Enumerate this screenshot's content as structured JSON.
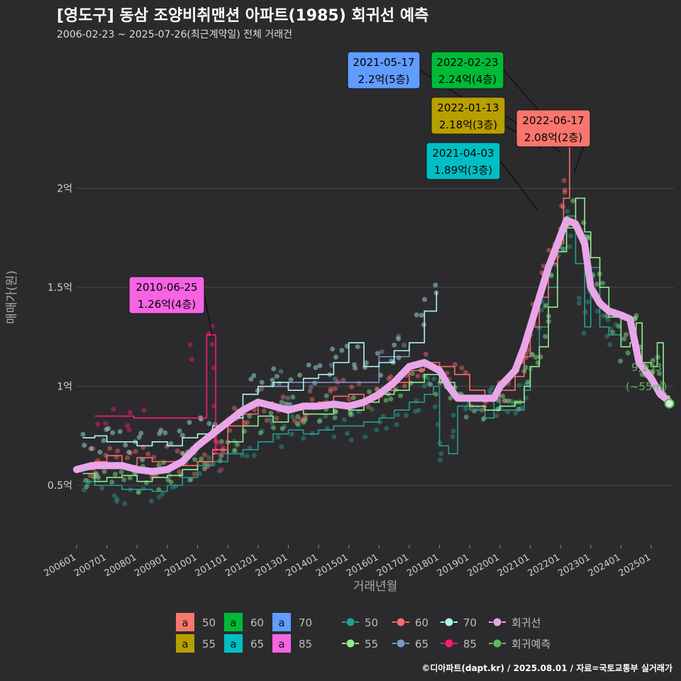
{
  "header": {
    "title": "[영도구] 동삼 조양비취맨션 아파트(1985) 회귀선 예측",
    "subtitle": "2006-02-23 ~ 2025-07-26(최근계약일) 전체 거래건"
  },
  "footer": {
    "credit": "©디아파트(dapt.kr) / 2025.08.01 / 자료=국토교통부 실거래가"
  },
  "colors": {
    "background": "#2b2b2d",
    "grid": "#4a4a4d",
    "area50": "#f8766d",
    "area55": "#b79f00",
    "area60": "#00ba38",
    "area65": "#00bfc4",
    "area70": "#619cff",
    "area85": "#f564e3",
    "line50": "#2a9d8f",
    "line55": "#90ee90",
    "line60": "#ff6b6b",
    "line65": "#7f96c9",
    "line70": "#aef5f0",
    "line85": "#ff1a75",
    "regression": "#e8a6e8",
    "forecast": "#5cb85c"
  },
  "chart_data": {
    "type": "line",
    "title": "[영도구] 동삼 조양비취맨션 아파트(1985) 회귀선 예측",
    "subtitle": "2006-02-23 ~ 2025-07-26(최근계약일) 전체 거래건",
    "xlabel": "거래년월",
    "ylabel": "매매가(원)",
    "ylim": [
      0.2,
      2.7
    ],
    "x_range": [
      "2006-01",
      "2025-09"
    ],
    "grid": true,
    "x_ticks": [
      "200601",
      "200701",
      "200801",
      "200901",
      "201001",
      "201101",
      "201201",
      "201301",
      "201401",
      "201501",
      "201601",
      "201701",
      "201801",
      "201901",
      "202001",
      "202101",
      "202201",
      "202301",
      "202401",
      "202501"
    ],
    "y_ticks": [
      {
        "value": 0.5,
        "label": "0.5억"
      },
      {
        "value": 1.0,
        "label": "1억"
      },
      {
        "value": 1.5,
        "label": "1.5억"
      },
      {
        "value": 2.0,
        "label": "2억"
      }
    ],
    "series": [
      {
        "name": "50",
        "key": "line50",
        "points": [
          [
            2006.2,
            0.52
          ],
          [
            2006.6,
            0.5
          ],
          [
            2007.0,
            0.5
          ],
          [
            2007.5,
            0.48
          ],
          [
            2008.0,
            0.48
          ],
          [
            2008.5,
            0.47
          ],
          [
            2009.0,
            0.5
          ],
          [
            2009.5,
            0.54
          ],
          [
            2010.0,
            0.6
          ],
          [
            2010.5,
            0.62
          ],
          [
            2011.0,
            0.66
          ],
          [
            2011.5,
            0.68
          ],
          [
            2012.0,
            0.72
          ],
          [
            2012.5,
            0.76
          ],
          [
            2013.0,
            0.78
          ],
          [
            2013.5,
            0.76
          ],
          [
            2014.0,
            0.78
          ],
          [
            2014.5,
            0.8
          ],
          [
            2015.0,
            0.8
          ],
          [
            2015.5,
            0.82
          ],
          [
            2016.0,
            0.84
          ],
          [
            2016.5,
            0.88
          ],
          [
            2017.0,
            0.92
          ],
          [
            2017.5,
            0.96
          ],
          [
            2017.8,
            1.0
          ],
          [
            2018.0,
            0.7
          ],
          [
            2018.3,
            0.66
          ],
          [
            2018.6,
            0.9
          ],
          [
            2019.0,
            0.88
          ],
          [
            2019.5,
            0.84
          ],
          [
            2019.8,
            0.95
          ],
          [
            2020.0,
            0.88
          ],
          [
            2020.5,
            0.88
          ],
          [
            2020.8,
            0.98
          ],
          [
            2021.0,
            1.1
          ],
          [
            2021.3,
            1.3
          ],
          [
            2021.6,
            1.5
          ],
          [
            2021.9,
            1.7
          ],
          [
            2022.2,
            1.86
          ],
          [
            2022.5,
            1.62
          ],
          [
            2022.8,
            1.3
          ],
          [
            2023.0,
            1.6
          ],
          [
            2023.3,
            1.3
          ],
          [
            2023.6,
            1.26
          ],
          [
            2024.0,
            1.22
          ]
        ]
      },
      {
        "name": "55",
        "key": "line55",
        "points": [
          [
            2006.2,
            0.56
          ],
          [
            2006.6,
            0.52
          ],
          [
            2007.0,
            0.54
          ],
          [
            2007.5,
            0.55
          ],
          [
            2008.0,
            0.52
          ],
          [
            2008.5,
            0.54
          ],
          [
            2009.0,
            0.55
          ],
          [
            2009.5,
            0.58
          ],
          [
            2010.0,
            0.62
          ],
          [
            2010.5,
            0.66
          ],
          [
            2011.0,
            0.72
          ],
          [
            2011.5,
            0.8
          ],
          [
            2012.0,
            0.85
          ],
          [
            2012.5,
            0.82
          ],
          [
            2013.0,
            0.88
          ],
          [
            2013.5,
            0.86
          ],
          [
            2014.0,
            0.86
          ],
          [
            2014.5,
            0.9
          ],
          [
            2015.0,
            0.88
          ],
          [
            2015.5,
            0.92
          ],
          [
            2016.0,
            0.96
          ],
          [
            2016.5,
            0.98
          ],
          [
            2017.0,
            1.02
          ],
          [
            2017.5,
            1.06
          ],
          [
            2018.0,
            1.02
          ],
          [
            2018.5,
            0.95
          ],
          [
            2019.0,
            0.9
          ],
          [
            2019.5,
            0.88
          ],
          [
            2020.0,
            0.9
          ],
          [
            2020.5,
            0.92
          ],
          [
            2020.8,
            1.0
          ],
          [
            2021.0,
            1.1
          ],
          [
            2021.3,
            1.2
          ],
          [
            2021.6,
            1.4
          ],
          [
            2021.9,
            1.68
          ],
          [
            2022.2,
            1.8
          ],
          [
            2022.5,
            1.95
          ],
          [
            2022.8,
            1.78
          ],
          [
            2023.0,
            1.65
          ],
          [
            2023.3,
            1.5
          ],
          [
            2023.6,
            1.35
          ],
          [
            2024.0,
            1.2
          ],
          [
            2024.3,
            1.22
          ],
          [
            2024.5,
            1.32
          ],
          [
            2024.7,
            1.12
          ],
          [
            2025.0,
            1.1
          ],
          [
            2025.2,
            1.22
          ],
          [
            2025.4,
            0.95
          ],
          [
            2025.6,
            0.9
          ]
        ]
      },
      {
        "name": "60",
        "key": "line60",
        "points": [
          [
            2006.2,
            0.58
          ],
          [
            2006.6,
            0.62
          ],
          [
            2007.0,
            0.65
          ],
          [
            2007.5,
            0.6
          ],
          [
            2008.0,
            0.64
          ],
          [
            2008.5,
            0.62
          ],
          [
            2009.0,
            0.62
          ],
          [
            2009.5,
            0.6
          ],
          [
            2010.0,
            0.62
          ],
          [
            2010.5,
            0.68
          ],
          [
            2011.0,
            0.8
          ],
          [
            2011.5,
            0.86
          ],
          [
            2012.0,
            0.92
          ],
          [
            2012.5,
            0.9
          ],
          [
            2013.0,
            0.88
          ],
          [
            2013.5,
            0.9
          ],
          [
            2014.0,
            0.92
          ],
          [
            2014.5,
            0.95
          ],
          [
            2015.0,
            0.96
          ],
          [
            2015.5,
            0.94
          ],
          [
            2016.0,
            0.98
          ],
          [
            2016.5,
            1.02
          ],
          [
            2017.0,
            1.08
          ],
          [
            2017.5,
            1.12
          ],
          [
            2018.0,
            1.1
          ],
          [
            2018.5,
            1.06
          ],
          [
            2019.0,
            0.98
          ],
          [
            2019.5,
            0.95
          ],
          [
            2020.0,
            0.98
          ],
          [
            2020.5,
            1.05
          ],
          [
            2020.8,
            1.15
          ],
          [
            2021.0,
            1.3
          ],
          [
            2021.3,
            1.45
          ],
          [
            2021.6,
            1.62
          ],
          [
            2021.9,
            1.72
          ],
          [
            2022.1,
            1.95
          ],
          [
            2022.3,
            2.24
          ]
        ]
      },
      {
        "name": "65",
        "key": "line65",
        "points": [
          [
            2012.5,
            1.0
          ],
          [
            2013.0,
            1.02
          ],
          [
            2016.0,
            1.15
          ],
          [
            2017.0,
            1.2
          ]
        ]
      },
      {
        "name": "70",
        "key": "line70",
        "points": [
          [
            2006.2,
            0.74
          ],
          [
            2006.6,
            0.75
          ],
          [
            2007.0,
            0.72
          ],
          [
            2007.5,
            0.72
          ],
          [
            2008.0,
            0.7
          ],
          [
            2008.5,
            0.72
          ],
          [
            2009.0,
            0.7
          ],
          [
            2009.5,
            0.74
          ],
          [
            2010.0,
            0.76
          ],
          [
            2010.5,
            0.8
          ],
          [
            2011.0,
            0.84
          ],
          [
            2011.5,
            0.96
          ],
          [
            2012.0,
            1.0
          ],
          [
            2012.5,
            1.02
          ],
          [
            2013.0,
            0.98
          ],
          [
            2013.5,
            1.04
          ],
          [
            2014.0,
            1.06
          ],
          [
            2014.5,
            1.12
          ],
          [
            2015.0,
            1.22
          ],
          [
            2015.5,
            1.1
          ],
          [
            2016.0,
            1.12
          ],
          [
            2016.5,
            1.18
          ],
          [
            2017.0,
            1.22
          ],
          [
            2017.5,
            1.38
          ],
          [
            2017.9,
            1.48
          ]
        ]
      },
      {
        "name": "85",
        "key": "line85",
        "points": [
          [
            2006.6,
            0.85
          ],
          [
            2007.3,
            0.85
          ],
          [
            2007.9,
            0.84
          ],
          [
            2010.3,
            1.26
          ],
          [
            2010.5,
            1.26
          ],
          [
            2010.6,
            0.66
          ],
          [
            2011.0,
            0.66
          ]
        ]
      }
    ],
    "regression": {
      "name": "회귀선",
      "points": [
        [
          2006.0,
          0.58
        ],
        [
          2006.5,
          0.6
        ],
        [
          2007.0,
          0.6
        ],
        [
          2007.5,
          0.6
        ],
        [
          2008.0,
          0.58
        ],
        [
          2008.5,
          0.57
        ],
        [
          2009.0,
          0.58
        ],
        [
          2009.5,
          0.62
        ],
        [
          2010.0,
          0.7
        ],
        [
          2010.5,
          0.76
        ],
        [
          2011.0,
          0.82
        ],
        [
          2011.5,
          0.88
        ],
        [
          2012.0,
          0.92
        ],
        [
          2012.5,
          0.9
        ],
        [
          2013.0,
          0.88
        ],
        [
          2013.5,
          0.9
        ],
        [
          2014.0,
          0.9
        ],
        [
          2014.5,
          0.91
        ],
        [
          2015.0,
          0.9
        ],
        [
          2015.5,
          0.92
        ],
        [
          2016.0,
          0.96
        ],
        [
          2016.5,
          1.02
        ],
        [
          2017.0,
          1.1
        ],
        [
          2017.5,
          1.12
        ],
        [
          2018.0,
          1.08
        ],
        [
          2018.3,
          1.0
        ],
        [
          2018.6,
          0.94
        ],
        [
          2019.0,
          0.94
        ],
        [
          2019.5,
          0.94
        ],
        [
          2019.8,
          0.94
        ],
        [
          2020.0,
          1.0
        ],
        [
          2020.5,
          1.08
        ],
        [
          2020.8,
          1.2
        ],
        [
          2021.0,
          1.3
        ],
        [
          2021.3,
          1.45
        ],
        [
          2021.6,
          1.6
        ],
        [
          2021.9,
          1.72
        ],
        [
          2022.2,
          1.84
        ],
        [
          2022.5,
          1.82
        ],
        [
          2022.8,
          1.72
        ],
        [
          2023.0,
          1.5
        ],
        [
          2023.3,
          1.42
        ],
        [
          2023.6,
          1.38
        ],
        [
          2024.0,
          1.36
        ],
        [
          2024.3,
          1.34
        ],
        [
          2024.6,
          1.12
        ],
        [
          2025.0,
          1.04
        ],
        [
          2025.3,
          0.96
        ],
        [
          2025.55,
          0.93
        ]
      ]
    },
    "forecast": {
      "name": "회귀예측",
      "x": 2025.6,
      "y": 0.9133,
      "label_value": "9,133",
      "label_area": "(~55㎡)"
    },
    "callouts": [
      {
        "date": "2021-05-17",
        "price": "2.2억(5층)",
        "key": "area70",
        "text_color": "#000000",
        "tx": 2021.37,
        "ty": 2.2
      },
      {
        "date": "2022-02-23",
        "price": "2.24억(4층)",
        "key": "area60",
        "text_color": "#000000",
        "tx": 2022.15,
        "ty": 2.24
      },
      {
        "date": "2022-01-13",
        "price": "2.18억(3층)",
        "key": "area55",
        "text_color": "#000000",
        "tx": 2022.03,
        "ty": 2.18
      },
      {
        "date": "2022-06-17",
        "price": "2.08억(2층)",
        "key": "area50",
        "text_color": "#000000",
        "tx": 2022.46,
        "ty": 2.08
      },
      {
        "date": "2021-04-03",
        "price": "1.89억(3층)",
        "key": "area65",
        "text_color": "#000000",
        "tx": 2021.25,
        "ty": 1.89
      },
      {
        "date": "2010-06-25",
        "price": "1.26억(4층)",
        "key": "area85",
        "text_color": "#000000",
        "tx": 2010.48,
        "ty": 1.26
      }
    ],
    "legend": {
      "area_keys": [
        {
          "symbol": "a",
          "label": "50",
          "key": "area50"
        },
        {
          "symbol": "a",
          "label": "55",
          "key": "area55"
        },
        {
          "symbol": "a",
          "label": "60",
          "key": "area60"
        },
        {
          "symbol": "a",
          "label": "65",
          "key": "area65"
        },
        {
          "symbol": "a",
          "label": "70",
          "key": "area70"
        },
        {
          "symbol": "a",
          "label": "85",
          "key": "area85"
        }
      ],
      "line_keys": [
        {
          "label": "50",
          "key": "line50"
        },
        {
          "label": "55",
          "key": "line55"
        },
        {
          "label": "60",
          "key": "line60"
        },
        {
          "label": "65",
          "key": "line65"
        },
        {
          "label": "70",
          "key": "line70"
        },
        {
          "label": "85",
          "key": "line85"
        },
        {
          "label": "회귀선",
          "key": "regression"
        },
        {
          "label": "회귀예측",
          "key": "forecast"
        }
      ]
    }
  }
}
